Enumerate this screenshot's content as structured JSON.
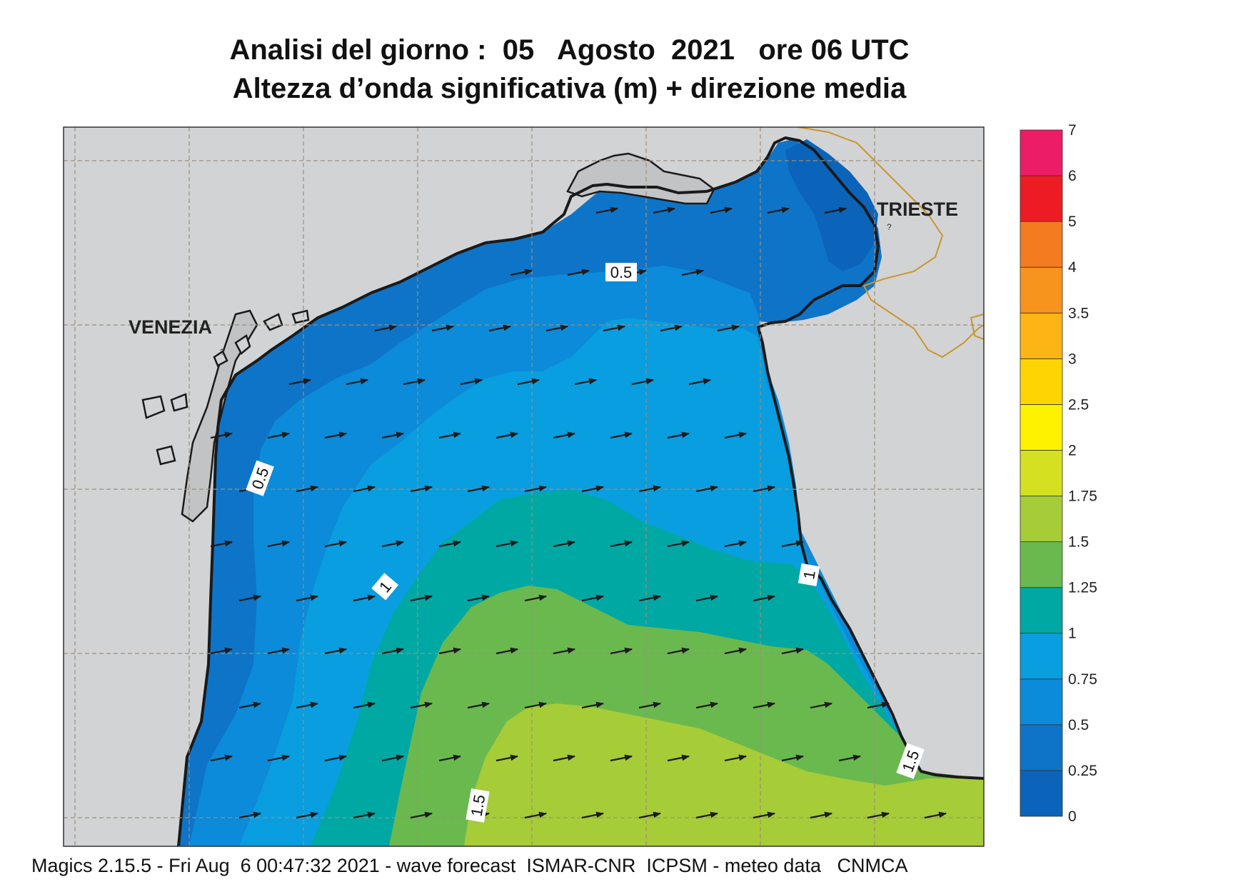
{
  "title": {
    "line1": "Analisi del giorno :  05   Agosto  2021   ore 06 UTC",
    "line2": "Altezza d’onda significativa (m) + direzione media"
  },
  "map": {
    "cities": [
      {
        "name": "VENEZIA"
      },
      {
        "name": "TRIESTE"
      }
    ],
    "contour_labels": [
      "0.5",
      "0.5",
      "1",
      "1",
      "1.5",
      "1.5"
    ],
    "wave_direction": "east (arrows pointing right)",
    "colors": {
      "land": "#d2d3d4",
      "lagoon": "#c2c3c4",
      "coast": "#1a1a1a",
      "border": "#c9962d",
      "grid": "#9e8e7a"
    }
  },
  "legend": {
    "unit": "m",
    "levels": [
      "0",
      "0.25",
      "0.5",
      "0.75",
      "1",
      "1.25",
      "1.5",
      "1.75",
      "2",
      "2.5",
      "3",
      "3.5",
      "4",
      "5",
      "6",
      "7"
    ],
    "colors": [
      "#0b64ba",
      "#0e74c8",
      "#0b8bd9",
      "#099edf",
      "#00a8a4",
      "#6ab94e",
      "#a6cc38",
      "#d4e020",
      "#fff200",
      "#ffd500",
      "#fdb515",
      "#f7941e",
      "#f47b20",
      "#ed1c24",
      "#ec1c66"
    ]
  },
  "footer": {
    "text": "Magics 2.15.5 - Fri Aug  6 00:47:32 2021 - wave forecast  ISMAR-CNR  ICPSM - meteo data   CNMCA"
  }
}
